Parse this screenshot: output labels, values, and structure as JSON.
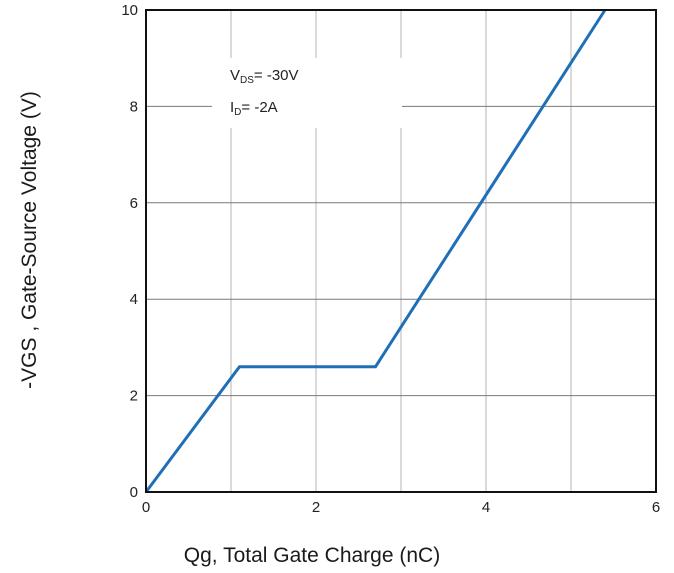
{
  "chart_data": {
    "type": "line",
    "xlabel": "Qg, Total Gate Charge (nC)",
    "ylabel": "-VGS , Gate-Source Voltage (V)",
    "xlim": [
      0,
      6
    ],
    "ylim": [
      0,
      10
    ],
    "x_ticks": [
      "0",
      "2",
      "4",
      "6"
    ],
    "y_ticks": [
      "0",
      "2",
      "4",
      "6",
      "8",
      "10"
    ],
    "x_grid_step": 1,
    "y_grid_step": 2,
    "grid": true,
    "series": [
      {
        "color": "#1f6fb8",
        "points": [
          {
            "x": 0,
            "y": 0
          },
          {
            "x": 1.1,
            "y": 2.6
          },
          {
            "x": 2.7,
            "y": 2.6
          },
          {
            "x": 5.4,
            "y": 10
          }
        ]
      }
    ],
    "annotations": {
      "line1": {
        "main": "V",
        "sub": "DS",
        "rest": "= -30V"
      },
      "line2": {
        "main": "I",
        "sub": "D",
        "rest": "= -2A"
      }
    }
  }
}
